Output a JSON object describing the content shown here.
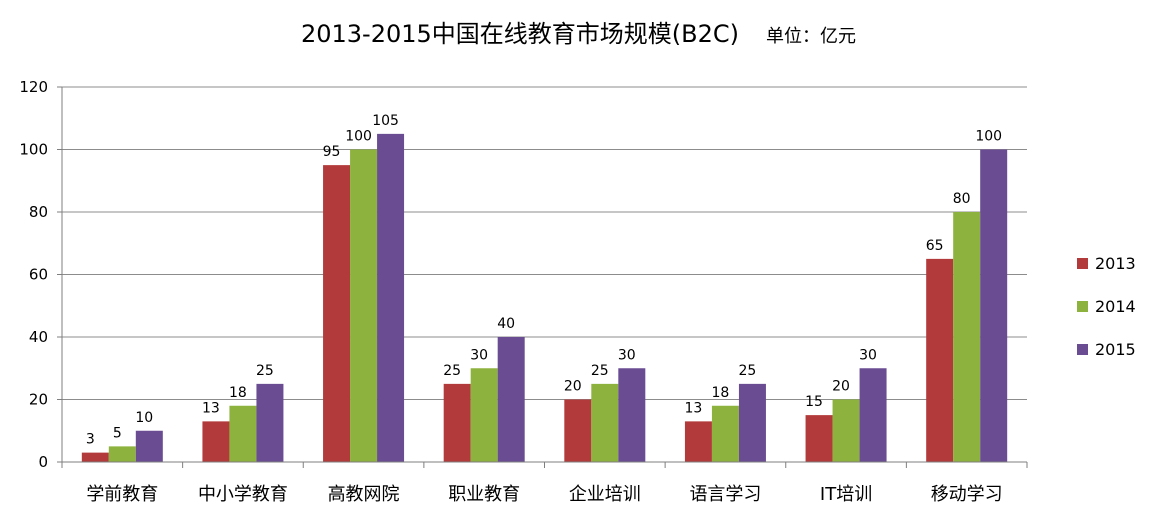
{
  "chart_data": {
    "type": "bar",
    "title": "2013-2015中国在线教育市场规模(B2C)",
    "unit_label": "单位：亿元",
    "xlabel": "",
    "ylabel": "",
    "ylim": [
      0,
      120
    ],
    "yticks": [
      0,
      20,
      40,
      60,
      80,
      100,
      120
    ],
    "grid": true,
    "legend_position": "right",
    "categories": [
      "学前教育",
      "中小学教育",
      "高教网院",
      "职业教育",
      "企业培训",
      "语言学习",
      "IT培训",
      "移动学习"
    ],
    "series": [
      {
        "name": "2013",
        "color": "#b23a3a",
        "values": [
          3,
          13,
          95,
          25,
          20,
          13,
          15,
          65
        ]
      },
      {
        "name": "2014",
        "color": "#8db23e",
        "values": [
          5,
          18,
          100,
          30,
          25,
          18,
          20,
          80
        ]
      },
      {
        "name": "2015",
        "color": "#6a4c93",
        "values": [
          10,
          25,
          105,
          40,
          30,
          25,
          30,
          100
        ]
      }
    ]
  }
}
